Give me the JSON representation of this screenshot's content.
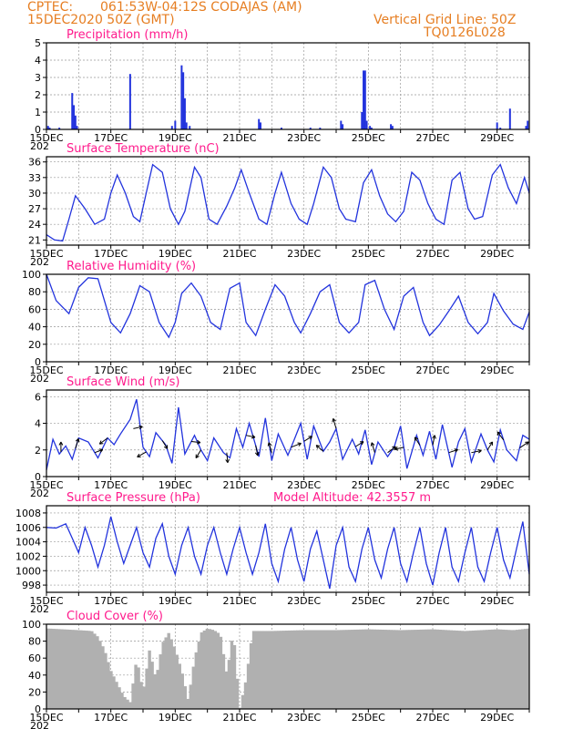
{
  "header": {
    "source": "CPTEC:",
    "location": "061:53W-04:12S  CODAJAS (AM)",
    "datetime": "15DEC2020 50Z (GMT)",
    "vgrid": "Vertical Grid Line: 50Z",
    "code": "TQ0126L028"
  },
  "colors": {
    "header": "#e67e22",
    "panel_title": "#ff1a8c",
    "series": "#2233dd",
    "cloud": "#b0b0b0",
    "grid": "#999999"
  },
  "x_axis": {
    "labels": [
      "15DEC",
      "17DEC",
      "19DEC",
      "21DEC",
      "23DEC",
      "25DEC",
      "27DEC",
      "29DEC"
    ],
    "start_day": 15,
    "end_day": 30,
    "year_fragment": "202"
  },
  "chart_data": [
    {
      "type": "bar",
      "title": "Precipitation (mm/h)",
      "ylim": [
        0,
        5
      ],
      "yticks": [
        0,
        1,
        2,
        3,
        4,
        5
      ],
      "grid": true,
      "x": [
        15.05,
        15.1,
        15.4,
        15.8,
        15.85,
        15.9,
        15.95,
        17.6,
        18.9,
        19.0,
        19.2,
        19.25,
        19.3,
        19.35,
        19.45,
        21.6,
        21.65,
        22.3,
        23.2,
        23.5,
        24.15,
        24.2,
        24.8,
        24.85,
        24.9,
        24.95,
        25.05,
        25.1,
        25.7,
        25.75,
        29.0,
        29.1,
        29.4,
        29.9,
        29.95
      ],
      "values": [
        0.2,
        0.1,
        0.1,
        2.1,
        1.4,
        0.8,
        0.2,
        3.2,
        0.2,
        0.5,
        3.7,
        3.3,
        1.8,
        0.4,
        0.2,
        0.6,
        0.4,
        0.1,
        0.1,
        0.1,
        0.5,
        0.3,
        1.0,
        3.4,
        3.4,
        0.5,
        0.2,
        0.1,
        0.3,
        0.2,
        0.4,
        0.1,
        1.2,
        0.2,
        0.5
      ]
    },
    {
      "type": "line",
      "title": "Surface Temperature (nC)",
      "ylim": [
        20,
        37
      ],
      "yticks": [
        21,
        24,
        27,
        30,
        33,
        36
      ],
      "grid": true,
      "x": [
        15.0,
        15.25,
        15.5,
        15.7,
        15.9,
        16.2,
        16.5,
        16.8,
        17.0,
        17.2,
        17.45,
        17.7,
        17.9,
        18.1,
        18.3,
        18.6,
        18.85,
        19.1,
        19.3,
        19.6,
        19.8,
        20.05,
        20.3,
        20.6,
        20.85,
        21.05,
        21.3,
        21.6,
        21.85,
        22.1,
        22.3,
        22.6,
        22.85,
        23.1,
        23.3,
        23.6,
        23.85,
        24.1,
        24.3,
        24.6,
        24.85,
        25.1,
        25.35,
        25.6,
        25.85,
        26.1,
        26.35,
        26.6,
        26.85,
        27.1,
        27.35,
        27.6,
        27.85,
        28.1,
        28.3,
        28.55,
        28.85,
        29.1,
        29.35,
        29.6,
        29.85,
        30.0
      ],
      "values": [
        22,
        21,
        20.8,
        25,
        29.5,
        27,
        24,
        25,
        30,
        33.5,
        30,
        25.5,
        24.5,
        30,
        35.5,
        34,
        27,
        24,
        26.5,
        35,
        33,
        25,
        24,
        27.5,
        31,
        34.5,
        30,
        25,
        24,
        30,
        34,
        28,
        25,
        24,
        28,
        35,
        33,
        27,
        25,
        24.5,
        32,
        34.5,
        29.5,
        26,
        24.5,
        26.5,
        34,
        32.5,
        28,
        25,
        24,
        32.5,
        34,
        27,
        25,
        25.5,
        33.5,
        35.5,
        31,
        28,
        33,
        30
      ]
    },
    {
      "type": "line",
      "title": "Relative Humidity (%)",
      "ylim": [
        0,
        100
      ],
      "yticks": [
        0,
        20,
        40,
        60,
        80,
        100
      ],
      "grid": true,
      "x": [
        15.0,
        15.3,
        15.7,
        16.0,
        16.3,
        16.6,
        16.8,
        17.0,
        17.3,
        17.6,
        17.9,
        18.2,
        18.5,
        18.8,
        19.0,
        19.2,
        19.5,
        19.8,
        20.1,
        20.4,
        20.7,
        21.0,
        21.2,
        21.5,
        21.8,
        22.1,
        22.4,
        22.7,
        22.9,
        23.2,
        23.5,
        23.8,
        24.1,
        24.4,
        24.7,
        24.9,
        25.2,
        25.5,
        25.8,
        26.1,
        26.4,
        26.7,
        26.9,
        27.2,
        27.5,
        27.8,
        28.1,
        28.4,
        28.7,
        28.9,
        29.2,
        29.5,
        29.8,
        30.0
      ],
      "values": [
        100,
        70,
        55,
        85,
        96,
        95,
        70,
        45,
        33,
        55,
        87,
        80,
        45,
        28,
        45,
        78,
        90,
        75,
        45,
        37,
        84,
        90,
        45,
        30,
        60,
        88,
        75,
        45,
        33,
        55,
        80,
        88,
        45,
        33,
        45,
        88,
        93,
        60,
        37,
        75,
        85,
        45,
        30,
        42,
        58,
        75,
        45,
        32,
        45,
        78,
        58,
        43,
        37,
        57
      ]
    },
    {
      "type": "line",
      "title": "Surface Wind (m/s)",
      "ylim": [
        0,
        6.5
      ],
      "yticks": [
        0,
        2,
        4,
        6
      ],
      "grid": true,
      "x": [
        15.0,
        15.2,
        15.4,
        15.6,
        15.8,
        16.0,
        16.3,
        16.6,
        16.9,
        17.1,
        17.3,
        17.6,
        17.8,
        18.0,
        18.2,
        18.4,
        18.7,
        18.9,
        19.1,
        19.3,
        19.6,
        19.8,
        20.0,
        20.2,
        20.5,
        20.7,
        20.9,
        21.1,
        21.3,
        21.6,
        21.8,
        22.0,
        22.2,
        22.5,
        22.7,
        22.9,
        23.1,
        23.3,
        23.6,
        23.8,
        24.0,
        24.2,
        24.5,
        24.7,
        24.9,
        25.1,
        25.3,
        25.6,
        25.8,
        26.0,
        26.2,
        26.5,
        26.7,
        26.9,
        27.1,
        27.3,
        27.6,
        27.8,
        28.0,
        28.2,
        28.5,
        28.7,
        28.9,
        29.1,
        29.3,
        29.6,
        29.8,
        30.0
      ],
      "values": [
        0.5,
        2.8,
        1.7,
        2.3,
        1.3,
        2.9,
        2.6,
        1.4,
        2.9,
        2.4,
        3.2,
        4.3,
        5.8,
        2.2,
        1.5,
        3.3,
        2.4,
        1.0,
        5.2,
        1.7,
        3.1,
        2.0,
        1.2,
        2.9,
        1.8,
        1.4,
        3.6,
        2.2,
        4.0,
        1.5,
        4.4,
        1.2,
        3.2,
        1.6,
        2.8,
        4.0,
        1.3,
        3.8,
        1.9,
        2.6,
        3.6,
        1.3,
        2.8,
        1.7,
        3.5,
        0.9,
        2.6,
        1.5,
        2.2,
        3.8,
        0.6,
        3.1,
        1.6,
        3.4,
        1.3,
        3.9,
        0.7,
        2.6,
        3.6,
        1.1,
        3.2,
        2.0,
        1.1,
        3.5,
        2.0,
        1.2,
        3.1,
        2.8
      ],
      "vectors": [
        {
          "x": 15.45,
          "u": 0,
          "v": 1
        },
        {
          "x": 15.9,
          "u": 0.3,
          "v": 1
        },
        {
          "x": 16.5,
          "u": 0.8,
          "v": 0.3
        },
        {
          "x": 16.9,
          "u": -0.8,
          "v": -0.6
        },
        {
          "x": 17.7,
          "u": 0.9,
          "v": 0.2
        },
        {
          "x": 18.1,
          "u": -0.9,
          "v": -0.5
        },
        {
          "x": 18.6,
          "u": 0.5,
          "v": -0.8
        },
        {
          "x": 19.5,
          "u": 0.9,
          "v": -0.1
        },
        {
          "x": 19.8,
          "u": -0.5,
          "v": -0.8
        },
        {
          "x": 20.6,
          "u": 0.1,
          "v": -1
        },
        {
          "x": 21.2,
          "u": 0.9,
          "v": -0.2
        },
        {
          "x": 21.5,
          "u": 0.2,
          "v": -1
        },
        {
          "x": 22.0,
          "u": -0.3,
          "v": 1
        },
        {
          "x": 22.6,
          "u": 1,
          "v": 0.4
        },
        {
          "x": 23.0,
          "u": 0.8,
          "v": 0.5
        },
        {
          "x": 23.6,
          "u": -0.7,
          "v": 0.6
        },
        {
          "x": 24.0,
          "u": -0.3,
          "v": 1
        },
        {
          "x": 24.6,
          "u": 0.8,
          "v": 0.5
        },
        {
          "x": 25.2,
          "u": -0.3,
          "v": 1
        },
        {
          "x": 25.6,
          "u": 0.8,
          "v": 0.6
        },
        {
          "x": 26.1,
          "u": -0.9,
          "v": -0.2
        },
        {
          "x": 26.6,
          "u": -0.5,
          "v": 0.8
        },
        {
          "x": 27.0,
          "u": 0.2,
          "v": 1
        },
        {
          "x": 27.5,
          "u": 0.9,
          "v": 0.3
        },
        {
          "x": 28.2,
          "u": 1,
          "v": 0.2
        },
        {
          "x": 28.7,
          "u": 0.5,
          "v": 0.8
        },
        {
          "x": 29.2,
          "u": -0.6,
          "v": 0.8
        },
        {
          "x": 29.7,
          "u": 0.9,
          "v": 0.6
        }
      ]
    },
    {
      "type": "line",
      "title": "Surface Pressure (hPa)",
      "annotation": "Model Altitude: 42.3557 m",
      "ylim": [
        997,
        1009
      ],
      "yticks": [
        998,
        1000,
        1002,
        1004,
        1006,
        1008
      ],
      "grid": true,
      "x": [
        15.0,
        15.3,
        15.6,
        15.8,
        16.0,
        16.2,
        16.4,
        16.6,
        16.8,
        17.0,
        17.2,
        17.4,
        17.6,
        17.8,
        18.0,
        18.2,
        18.4,
        18.6,
        18.8,
        19.0,
        19.2,
        19.4,
        19.6,
        19.8,
        20.0,
        20.2,
        20.4,
        20.6,
        20.8,
        21.0,
        21.2,
        21.4,
        21.6,
        21.8,
        22.0,
        22.2,
        22.4,
        22.6,
        22.8,
        23.0,
        23.2,
        23.4,
        23.6,
        23.8,
        24.0,
        24.2,
        24.4,
        24.6,
        24.8,
        25.0,
        25.2,
        25.4,
        25.6,
        25.8,
        26.0,
        26.2,
        26.4,
        26.6,
        26.8,
        27.0,
        27.2,
        27.4,
        27.6,
        27.8,
        28.0,
        28.2,
        28.4,
        28.6,
        28.8,
        29.0,
        29.2,
        29.4,
        29.6,
        29.8,
        30.0
      ],
      "values": [
        1006,
        1005.9,
        1006.5,
        1004.5,
        1002.5,
        1006,
        1003.5,
        1000.5,
        1003.5,
        1007.5,
        1004,
        1001,
        1003.5,
        1006,
        1002.5,
        1000.5,
        1004.5,
        1006.5,
        1002,
        999.5,
        1003.5,
        1006,
        1002,
        999.5,
        1003.5,
        1006,
        1002.5,
        999.5,
        1003,
        1006,
        1002.5,
        999.5,
        1002.5,
        1006.5,
        1001,
        998.5,
        1003,
        1006,
        1001.5,
        998.5,
        1003,
        1005.5,
        1001.5,
        997.5,
        1003.5,
        1006,
        1000.5,
        998.5,
        1003,
        1006,
        1001.5,
        999,
        1003,
        1006,
        1001,
        998.5,
        1002.5,
        1006,
        1001,
        998,
        1002.5,
        1006,
        1000.5,
        998.5,
        1002.5,
        1006,
        1000.5,
        998.5,
        1002.5,
        1006,
        1001.5,
        999,
        1003,
        1006.8,
        999.5
      ]
    },
    {
      "type": "bar",
      "title": "Cloud Cover (%)",
      "ylim": [
        0,
        100
      ],
      "yticks": [
        0,
        20,
        40,
        60,
        80,
        100
      ],
      "grid": true,
      "x": [
        15.0,
        15.5,
        16.0,
        16.4,
        16.6,
        16.8,
        17.0,
        17.2,
        17.4,
        17.6,
        17.8,
        18.0,
        18.2,
        18.4,
        18.6,
        18.8,
        19.0,
        19.2,
        19.4,
        19.6,
        19.8,
        20.0,
        20.2,
        20.4,
        20.6,
        20.8,
        21.0,
        21.2,
        21.4,
        22.0,
        23.0,
        24.0,
        25.0,
        26.0,
        27.0,
        28.0,
        29.0,
        29.5,
        30.0
      ],
      "values": [
        95,
        94,
        93,
        92,
        85,
        70,
        45,
        30,
        15,
        8,
        60,
        20,
        70,
        35,
        78,
        90,
        70,
        45,
        10,
        60,
        90,
        95,
        93,
        88,
        40,
        93,
        0,
        35,
        92,
        92,
        93,
        93,
        94,
        93,
        94,
        92,
        94,
        93,
        95
      ]
    }
  ]
}
